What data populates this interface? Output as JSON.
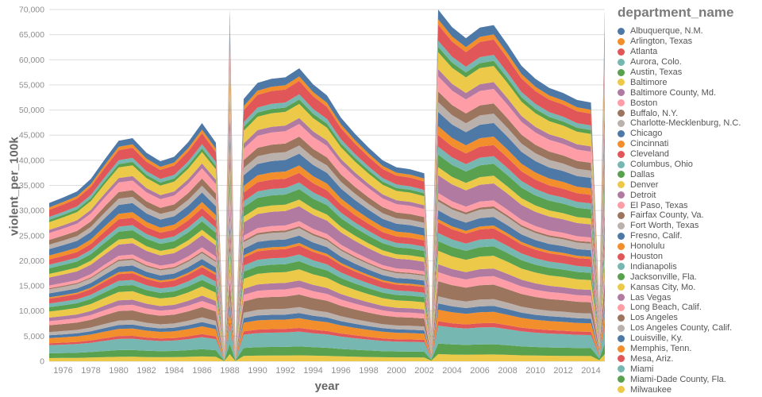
{
  "chart_data": {
    "type": "area",
    "stacked": true,
    "title": "",
    "xlabel": "year",
    "ylabel": "violent_per_100k",
    "legend_title": "department_name",
    "legend_position": "right",
    "grid": "horizontal",
    "xlim": [
      1975,
      2015
    ],
    "ylim": [
      0,
      70000
    ],
    "x_ticks": [
      1976,
      1978,
      1980,
      1982,
      1984,
      1986,
      1988,
      1990,
      1992,
      1994,
      1996,
      1998,
      2000,
      2002,
      2004,
      2006,
      2008,
      2010,
      2012,
      2014
    ],
    "y_ticks": [
      0,
      5000,
      10000,
      15000,
      20000,
      25000,
      30000,
      35000,
      40000,
      45000,
      50000,
      55000,
      60000,
      65000,
      70000
    ],
    "x": [
      1975,
      1976,
      1977,
      1978,
      1979,
      1980,
      1981,
      1982,
      1983,
      1984,
      1985,
      1986,
      1987,
      1987.6,
      1988,
      1988.4,
      1989,
      1990,
      1991,
      1992,
      1993,
      1994,
      1995,
      1996,
      1997,
      1998,
      1999,
      2000,
      2001,
      2002,
      2002.5,
      2003,
      2004,
      2005,
      2006,
      2007,
      2008,
      2009,
      2010,
      2011,
      2012,
      2013,
      2014,
      2014.6,
      2015
    ],
    "stack_totals": [
      31500,
      32600,
      33800,
      36300,
      40200,
      43900,
      44400,
      41500,
      39800,
      40700,
      43600,
      47400,
      43500,
      2500,
      70000,
      2500,
      52200,
      55400,
      56200,
      56500,
      58300,
      55100,
      52900,
      48500,
      45300,
      42500,
      40000,
      38600,
      38200,
      37400,
      6000,
      70000,
      66500,
      64300,
      66400,
      66900,
      63000,
      58800,
      56200,
      54400,
      53400,
      52000,
      51500,
      11000,
      70000
    ],
    "value_rule": "value of a series at x = stack_total(x) * weight / sum(all weights); the dips at fractional x positions encode the white reporting-gap wedges and the thin full-height spikes at 1988, 2003 and 2015 visible in the chart",
    "palette": [
      "#4e79a7",
      "#f28e2b",
      "#e15759",
      "#76b7b2",
      "#59a14f",
      "#edc949",
      "#b07aa1",
      "#ff9da7",
      "#9c755f",
      "#bab0ac"
    ],
    "series": [
      {
        "name": "Albuquerque, N.M.",
        "color": "#4e79a7",
        "weight": 1.1
      },
      {
        "name": "Arlington, Texas",
        "color": "#f28e2b",
        "weight": 0.6
      },
      {
        "name": "Atlanta",
        "color": "#e15759",
        "weight": 1.8
      },
      {
        "name": "Aurora, Colo.",
        "color": "#76b7b2",
        "weight": 0.7
      },
      {
        "name": "Austin, Texas",
        "color": "#59a14f",
        "weight": 0.6
      },
      {
        "name": "Baltimore",
        "color": "#edc949",
        "weight": 1.9
      },
      {
        "name": "Baltimore County, Md.",
        "color": "#b07aa1",
        "weight": 0.8
      },
      {
        "name": "Boston",
        "color": "#ff9da7",
        "weight": 1.7
      },
      {
        "name": "Buffalo, N.Y.",
        "color": "#9c755f",
        "weight": 1.2
      },
      {
        "name": "Charlotte-Mecklenburg, N.C.",
        "color": "#bab0ac",
        "weight": 1.1
      },
      {
        "name": "Chicago",
        "color": "#4e79a7",
        "weight": 1.6
      },
      {
        "name": "Cincinnati",
        "color": "#f28e2b",
        "weight": 1.0
      },
      {
        "name": "Cleveland",
        "color": "#e15759",
        "weight": 1.3
      },
      {
        "name": "Columbus, Ohio",
        "color": "#76b7b2",
        "weight": 0.9
      },
      {
        "name": "Dallas",
        "color": "#59a14f",
        "weight": 1.4
      },
      {
        "name": "Denver",
        "color": "#edc949",
        "weight": 0.9
      },
      {
        "name": "Detroit",
        "color": "#b07aa1",
        "weight": 2.0
      },
      {
        "name": "El Paso, Texas",
        "color": "#ff9da7",
        "weight": 0.7
      },
      {
        "name": "Fairfax County, Va.",
        "color": "#9c755f",
        "weight": 0.25
      },
      {
        "name": "Fort Worth, Texas",
        "color": "#bab0ac",
        "weight": 1.0
      },
      {
        "name": "Fresno, Calif.",
        "color": "#4e79a7",
        "weight": 1.0
      },
      {
        "name": "Honolulu",
        "color": "#f28e2b",
        "weight": 0.35
      },
      {
        "name": "Houston",
        "color": "#e15759",
        "weight": 1.2
      },
      {
        "name": "Indianapolis",
        "color": "#76b7b2",
        "weight": 0.9
      },
      {
        "name": "Jacksonville, Fla.",
        "color": "#59a14f",
        "weight": 1.1
      },
      {
        "name": "Kansas City, Mo.",
        "color": "#edc949",
        "weight": 1.5
      },
      {
        "name": "Las Vegas",
        "color": "#b07aa1",
        "weight": 0.9
      },
      {
        "name": "Long Beach, Calif.",
        "color": "#ff9da7",
        "weight": 1.0
      },
      {
        "name": "Los Angeles",
        "color": "#9c755f",
        "weight": 1.7
      },
      {
        "name": "Los Angeles County, Calif.",
        "color": "#bab0ac",
        "weight": 0.8
      },
      {
        "name": "Louisville, Ky.",
        "color": "#4e79a7",
        "weight": 0.7
      },
      {
        "name": "Memphis, Tenn.",
        "color": "#f28e2b",
        "weight": 1.3
      },
      {
        "name": "Mesa, Ariz.",
        "color": "#e15759",
        "weight": 0.5
      },
      {
        "name": "Miami",
        "color": "#76b7b2",
        "weight": 2.0
      },
      {
        "name": "Miami-Dade County, Fla.",
        "color": "#59a14f",
        "weight": 1.2
      },
      {
        "name": "Milwaukee",
        "color": "#edc949",
        "weight": 0.8
      }
    ]
  }
}
